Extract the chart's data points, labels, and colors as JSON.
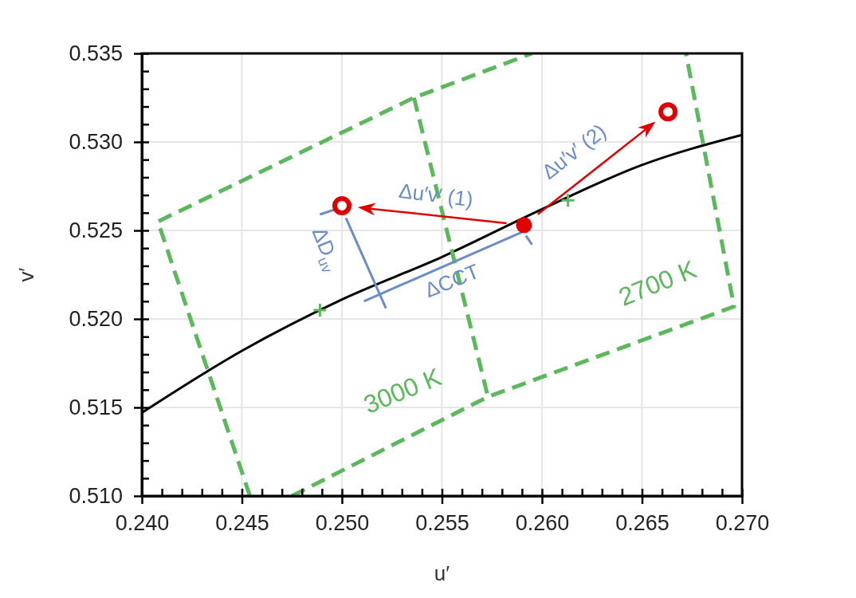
{
  "chart_data": {
    "type": "line",
    "xlabel": "u′",
    "ylabel": "v′",
    "xlim": [
      0.24,
      0.27
    ],
    "ylim": [
      0.51,
      0.535
    ],
    "grid": true,
    "xticks": [
      {
        "value": 0.24,
        "label": "0.240"
      },
      {
        "value": 0.241,
        "label": null
      },
      {
        "value": 0.242,
        "label": null
      },
      {
        "value": 0.243,
        "label": null
      },
      {
        "value": 0.244,
        "label": null
      },
      {
        "value": 0.245,
        "label": "0.245"
      },
      {
        "value": 0.246,
        "label": null
      },
      {
        "value": 0.247,
        "label": null
      },
      {
        "value": 0.248,
        "label": null
      },
      {
        "value": 0.249,
        "label": null
      },
      {
        "value": 0.25,
        "label": "0.250"
      },
      {
        "value": 0.251,
        "label": null
      },
      {
        "value": 0.252,
        "label": null
      },
      {
        "value": 0.253,
        "label": null
      },
      {
        "value": 0.254,
        "label": null
      },
      0.255,
      {
        "value": 0.256,
        "label": null
      },
      {
        "value": 0.257,
        "label": null
      },
      {
        "value": 0.258,
        "label": null
      },
      {
        "value": 0.259,
        "label": null
      },
      {
        "value": 0.26,
        "label": "0.260"
      },
      {
        "value": 0.261,
        "label": null
      },
      {
        "value": 0.262,
        "label": null
      },
      {
        "value": 0.263,
        "label": null
      },
      {
        "value": 0.264,
        "label": null
      },
      0.265,
      {
        "value": 0.266,
        "label": null
      },
      {
        "value": 0.267,
        "label": null
      },
      {
        "value": 0.268,
        "label": null
      },
      {
        "value": 0.269,
        "label": null
      },
      {
        "value": 0.27,
        "label": "0.270"
      }
    ],
    "yticks": [
      {
        "value": 0.51,
        "label": "0.510"
      },
      {
        "value": 0.511,
        "label": null
      },
      {
        "value": 0.512,
        "label": null
      },
      {
        "value": 0.513,
        "label": null
      },
      {
        "value": 0.514,
        "label": null
      },
      0.515,
      {
        "value": 0.516,
        "label": null
      },
      {
        "value": 0.517,
        "label": null
      },
      {
        "value": 0.518,
        "label": null
      },
      {
        "value": 0.519,
        "label": null
      },
      {
        "value": 0.52,
        "label": "0.520"
      },
      {
        "value": 0.521,
        "label": null
      },
      {
        "value": 0.522,
        "label": null
      },
      {
        "value": 0.523,
        "label": null
      },
      {
        "value": 0.524,
        "label": null
      },
      0.525,
      {
        "value": 0.526,
        "label": null
      },
      {
        "value": 0.527,
        "label": null
      },
      {
        "value": 0.528,
        "label": null
      },
      {
        "value": 0.529,
        "label": null
      },
      {
        "value": 0.53,
        "label": "0.530"
      },
      {
        "value": 0.531,
        "label": null
      },
      {
        "value": 0.532,
        "label": null
      },
      {
        "value": 0.533,
        "label": null
      },
      {
        "value": 0.534,
        "label": null
      },
      0.535
    ],
    "series": [
      {
        "color": "#000000",
        "x": [
          0.24,
          0.245,
          0.25,
          0.255,
          0.26,
          0.265,
          0.27
        ],
        "values": [
          0.5147,
          0.5182,
          0.5211,
          0.5235,
          0.5262,
          0.5287,
          0.5304
        ]
      },
      {
        "type": "line",
        "color": "#5cb85c",
        "line_style": "dashed",
        "x": [
          0.2454,
          0.2408,
          0.2536,
          0.2595
        ],
        "values": [
          0.51,
          0.5255,
          0.5325,
          0.535
        ]
      },
      {
        "type": "line",
        "color": "#5cb85c",
        "line_style": "dashed",
        "x": [
          0.2536,
          0.2573
        ],
        "values": [
          0.5325,
          0.5156
        ]
      },
      {
        "type": "line",
        "color": "#5cb85c",
        "line_style": "dashed",
        "x": [
          0.2475,
          0.2573,
          0.2696,
          0.2672
        ],
        "values": [
          0.51,
          0.5156,
          0.5207,
          0.535
        ]
      },
      {
        "type": "line",
        "color": "#6b8cc7",
        "x": [
          0.2489,
          0.2505
        ],
        "values": [
          0.5259,
          0.5265
        ]
      },
      {
        "type": "line",
        "color": "#6b8cc7",
        "x": [
          0.2502,
          0.2522
        ],
        "values": [
          0.5257,
          0.5206
        ]
      },
      {
        "type": "line",
        "color": "#6b8cc7",
        "x": [
          0.2511,
          0.259
        ],
        "values": [
          0.521,
          0.5249
        ]
      },
      {
        "type": "line",
        "color": "#6b8cc7",
        "x": [
          0.2592,
          0.2595
        ],
        "values": [
          0.5247,
          0.5242
        ]
      },
      {
        "type": "scatter",
        "marker": "circle",
        "color": "#e00000",
        "x": [
          0.2591
        ],
        "values": [
          0.5253
        ]
      },
      {
        "type": "scatter",
        "marker": "circle",
        "color": "#e00000",
        "x": [
          0.25,
          0.2663
        ],
        "values": [
          0.5264,
          0.5317
        ]
      },
      {
        "type": "scatter",
        "marker": "cross",
        "color": "#5cb85c",
        "x": [
          0.2489,
          0.2613
        ],
        "values": [
          0.5205,
          0.5267
        ]
      }
    ],
    "annotations": [
      {
        "text": "Δu′v′ (1)",
        "x": 0.2547,
        "y": 0.527
      },
      "Δu′v′ (2)",
      "ΔCCT",
      "ΔD$_{uv}$",
      "3000 K",
      "2700 K"
    ]
  }
}
